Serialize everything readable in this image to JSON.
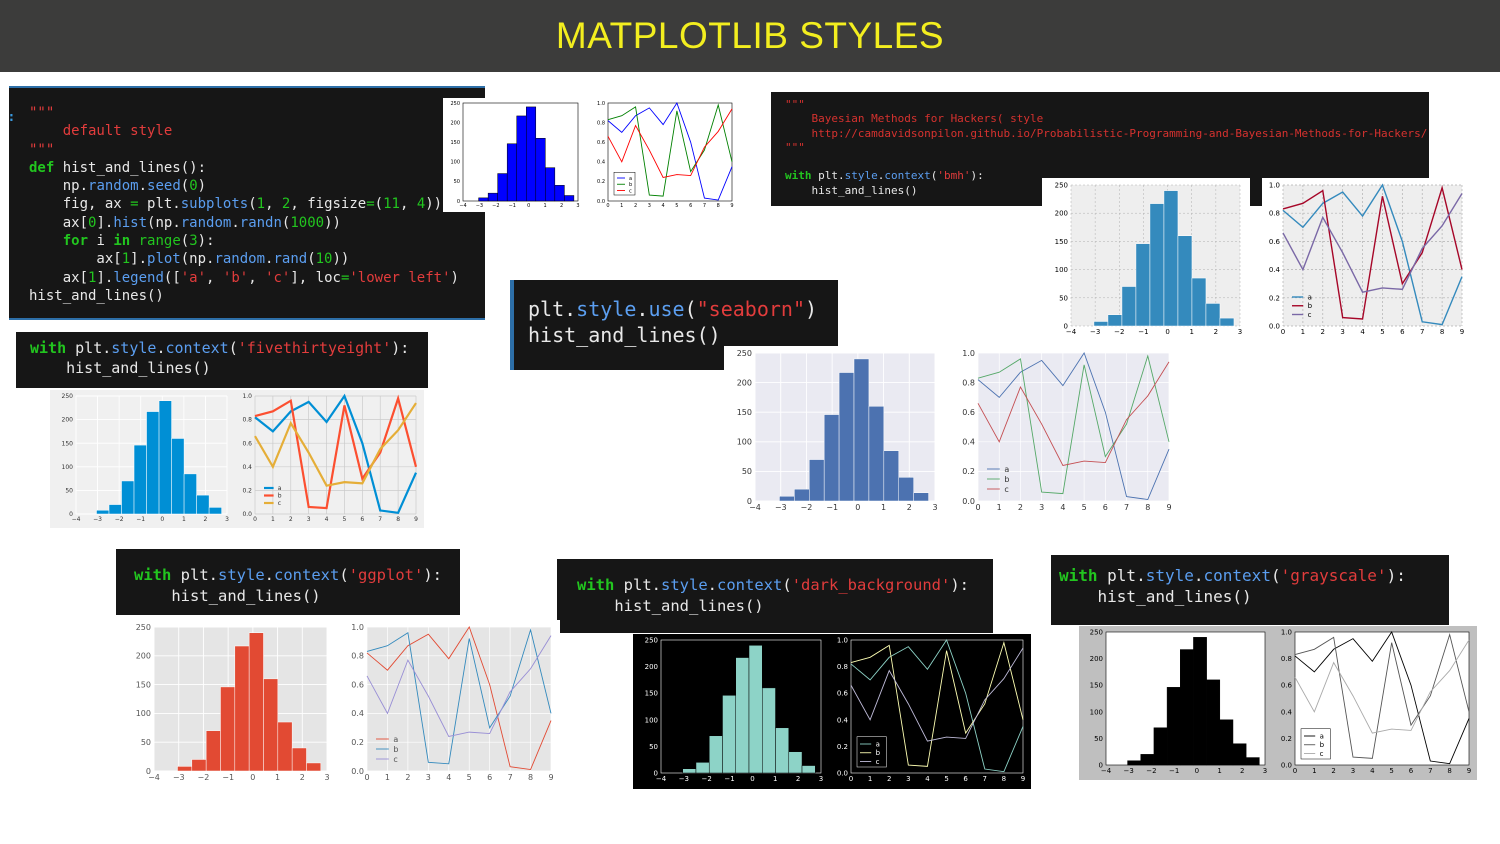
{
  "title": "MATPLOTLIB STYLES",
  "code": {
    "default": [
      "\"\"\"",
      "    default style",
      "\"\"\"",
      "def hist_and_lines():",
      "    np.random.seed(0)",
      "    fig, ax = plt.subplots(1, 2, figsize=(11, 4))",
      "    ax[0].hist(np.random.randn(1000))",
      "    for i in range(3):",
      "        ax[1].plot(np.random.rand(10))",
      "    ax[1].legend(['a', 'b', 'c'], loc='lower left')",
      "hist_and_lines()"
    ],
    "bmh": [
      "\"\"\"",
      "    Bayesian Methods for Hackers( style",
      "    http://camdavidsonpilon.github.io/Probabilistic-Programming-and-Bayesian-Methods-for-Hackers/",
      "\"\"\"",
      "",
      "with plt.style.context('bmh'):",
      "    hist_and_lines()"
    ],
    "fivethirtyeight": [
      "with plt.style.context('fivethirtyeight'):",
      "    hist_and_lines()"
    ],
    "seaborn": [
      "plt.style.use(\"seaborn\")",
      "hist_and_lines()"
    ],
    "ggplot": [
      "with plt.style.context('ggplot'):",
      "    hist_and_lines()"
    ],
    "dark_background": [
      "with plt.style.context('dark_background'):",
      "    hist_and_lines()"
    ],
    "grayscale": [
      "with plt.style.context('grayscale'):",
      "    hist_and_lines()"
    ]
  },
  "chart_data": {
    "type": "bar",
    "histogram": {
      "bin_edges": [
        -3.05,
        -2.47,
        -1.89,
        -1.31,
        -0.73,
        -0.15,
        0.43,
        1.01,
        1.59,
        2.17,
        2.75
      ],
      "counts": [
        8,
        20,
        70,
        146,
        217,
        240,
        160,
        85,
        40,
        14
      ],
      "xlim": [
        -4,
        3
      ],
      "xticks": [
        -4,
        -3,
        -2,
        -1,
        0,
        1,
        2,
        3
      ],
      "ylim": [
        0,
        250
      ],
      "yticks": [
        0,
        50,
        100,
        150,
        200,
        250
      ]
    },
    "lines": {
      "x": [
        0,
        1,
        2,
        3,
        4,
        5,
        6,
        7,
        8,
        9
      ],
      "series": [
        {
          "name": "a",
          "values": [
            0.82,
            0.7,
            0.87,
            0.95,
            0.78,
            1.0,
            0.6,
            0.03,
            0.01,
            0.35
          ]
        },
        {
          "name": "b",
          "values": [
            0.83,
            0.87,
            0.96,
            0.06,
            0.05,
            0.92,
            0.3,
            0.52,
            0.98,
            0.4
          ]
        },
        {
          "name": "c",
          "values": [
            0.66,
            0.4,
            0.77,
            0.52,
            0.24,
            0.27,
            0.26,
            0.55,
            0.71,
            0.94
          ]
        }
      ],
      "xlim": [
        0,
        9
      ],
      "xticks": [
        0,
        1,
        2,
        3,
        4,
        5,
        6,
        7,
        8,
        9
      ],
      "ylim": [
        0,
        1.0
      ],
      "yticks": [
        0.0,
        0.2,
        0.4,
        0.6,
        0.8,
        1.0
      ],
      "legend_position": "lower left"
    }
  },
  "styles": {
    "default": {
      "bg": "#ffffff",
      "axbg": "#ffffff",
      "hist": "#0000ff",
      "line_colors": [
        "#0000ff",
        "#008000",
        "#ff0000"
      ],
      "fg": "#000000",
      "grid": false
    },
    "bmh": {
      "bg": "#ffffff",
      "axbg": "#eeeeee",
      "hist": "#348abd",
      "line_colors": [
        "#348abd",
        "#a60628",
        "#7a68a6"
      ],
      "fg": "#000000",
      "grid": true
    },
    "fivethirtyeight": {
      "bg": "#f0f0f0",
      "axbg": "#f0f0f0",
      "hist": "#008fd5",
      "line_colors": [
        "#008fd5",
        "#fc4f30",
        "#e5ae38"
      ],
      "fg": "#333333",
      "grid": true
    },
    "seaborn": {
      "bg": "#ffffff",
      "axbg": "#eaeaf2",
      "hist": "#4c72b0",
      "line_colors": [
        "#4c72b0",
        "#55a868",
        "#c44e52"
      ],
      "fg": "#333333",
      "grid": true
    },
    "ggplot": {
      "bg": "#ffffff",
      "axbg": "#e5e5e5",
      "hist": "#e24a33",
      "line_colors": [
        "#e24a33",
        "#348abd",
        "#988ed5"
      ],
      "fg": "#555555",
      "grid": true
    },
    "dark_background": {
      "bg": "#000000",
      "axbg": "#000000",
      "hist": "#8dd3c7",
      "line_colors": [
        "#8dd3c7",
        "#feffb3",
        "#bfbbd9"
      ],
      "fg": "#ffffff",
      "grid": false
    },
    "grayscale": {
      "bg": "#bfbfbf",
      "axbg": "#ffffff",
      "hist": "#000000",
      "line_colors": [
        "#000000",
        "#555555",
        "#aaaaaa"
      ],
      "fg": "#000000",
      "grid": false
    }
  }
}
